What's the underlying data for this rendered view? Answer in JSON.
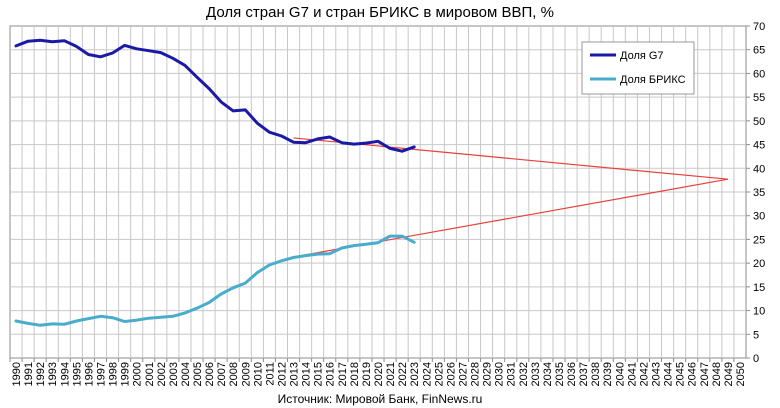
{
  "chart_data": {
    "type": "line",
    "title": "Доля стран G7 и стран БРИКС в мировом ВВП, %",
    "source": "Источник: Мировой Банк, FinNews.ru",
    "xlabel": "",
    "ylabel": "",
    "ylim": [
      0,
      70
    ],
    "yticks": [
      0,
      5,
      10,
      15,
      20,
      25,
      30,
      35,
      40,
      45,
      50,
      55,
      60,
      65,
      70
    ],
    "y_axis_side": "right",
    "grid": true,
    "legend_position": "top-right",
    "x": [
      "1990",
      "1991",
      "1992",
      "1993",
      "1994",
      "1995",
      "1996",
      "1997",
      "1998",
      "1999",
      "2000",
      "2001",
      "2002",
      "2003",
      "2004",
      "2005",
      "2006",
      "2007",
      "2008",
      "2009",
      "2010",
      "2011",
      "2012",
      "2013",
      "2014",
      "2015",
      "2016",
      "2017",
      "2018",
      "2019",
      "2020",
      "2021",
      "2022",
      "2023",
      "2024",
      "2025",
      "2026",
      "2027",
      "2028",
      "2029",
      "2030",
      "2031",
      "2032",
      "2033",
      "2034",
      "2035",
      "2036",
      "2037",
      "2038",
      "2039",
      "2040",
      "2041",
      "2042",
      "2043",
      "2044",
      "2045",
      "2046",
      "2047",
      "2048",
      "2049",
      "2050"
    ],
    "series": [
      {
        "name": "Доля G7",
        "color": "#1a1aa6",
        "x": [
          "1990",
          "1991",
          "1992",
          "1993",
          "1994",
          "1995",
          "1996",
          "1997",
          "1998",
          "1999",
          "2000",
          "2001",
          "2002",
          "2003",
          "2004",
          "2005",
          "2006",
          "2007",
          "2008",
          "2009",
          "2010",
          "2011",
          "2012",
          "2013",
          "2014",
          "2015",
          "2016",
          "2017",
          "2018",
          "2019",
          "2020",
          "2021",
          "2022",
          "2023"
        ],
        "values": [
          65.8,
          66.8,
          67.0,
          66.7,
          66.9,
          65.7,
          64.0,
          63.5,
          64.3,
          65.9,
          65.2,
          64.8,
          64.4,
          63.2,
          61.7,
          59.2,
          56.8,
          54.0,
          52.1,
          52.3,
          49.5,
          47.6,
          46.8,
          45.5,
          45.4,
          46.2,
          46.6,
          45.4,
          45.1,
          45.3,
          45.7,
          44.2,
          43.6,
          44.5
        ]
      },
      {
        "name": "Доля БРИКС",
        "color": "#4aaccc",
        "x": [
          "1990",
          "1991",
          "1992",
          "1993",
          "1994",
          "1995",
          "1996",
          "1997",
          "1998",
          "1999",
          "2000",
          "2001",
          "2002",
          "2003",
          "2004",
          "2005",
          "2006",
          "2007",
          "2008",
          "2009",
          "2010",
          "2011",
          "2012",
          "2013",
          "2014",
          "2015",
          "2016",
          "2017",
          "2018",
          "2019",
          "2020",
          "2021",
          "2022",
          "2023"
        ],
        "values": [
          7.8,
          7.3,
          6.9,
          7.2,
          7.1,
          7.8,
          8.3,
          8.8,
          8.5,
          7.7,
          8.0,
          8.4,
          8.6,
          8.8,
          9.5,
          10.5,
          11.7,
          13.5,
          14.8,
          15.8,
          18.0,
          19.6,
          20.5,
          21.2,
          21.6,
          21.9,
          22.0,
          23.2,
          23.7,
          24.0,
          24.3,
          25.7,
          25.7,
          24.4
        ]
      }
    ],
    "trendlines": [
      {
        "color": "#e8403a",
        "x": [
          "2013",
          "2049"
        ],
        "values": [
          46.4,
          37.7
        ]
      },
      {
        "color": "#e8403a",
        "x": [
          "2013",
          "2049"
        ],
        "values": [
          21.3,
          37.7
        ]
      }
    ]
  }
}
